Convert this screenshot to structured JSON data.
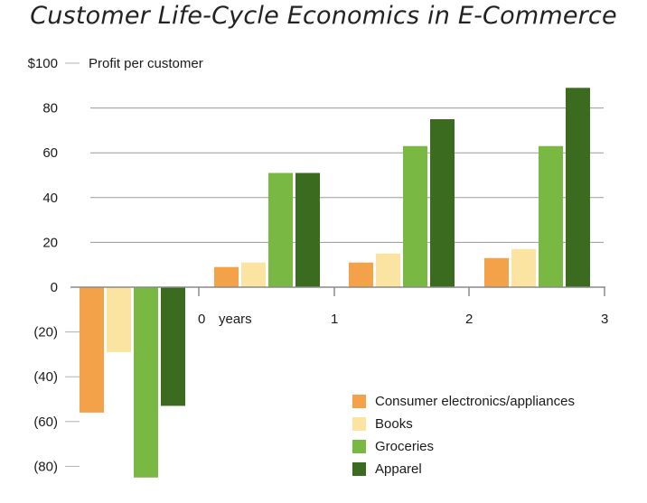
{
  "chart_data": {
    "type": "bar",
    "title": "Customer Life-Cycle Economics in E-Commerce",
    "ylabel": "Profit per customer",
    "xlabel": "years",
    "ylim": [
      -80,
      100
    ],
    "yticks": [
      100,
      80,
      60,
      40,
      20,
      0,
      -20,
      -40,
      -60,
      -80
    ],
    "ytick_labels": [
      "$100",
      "80",
      "60",
      "40",
      "20",
      "0",
      "(20)",
      "(40)",
      "(60)",
      "(80)"
    ],
    "categories": [
      "0",
      "1",
      "2",
      "3"
    ],
    "series": [
      {
        "name": "Consumer electronics/appliances",
        "color": "#f4a24a",
        "values": [
          -56,
          9,
          11,
          13
        ]
      },
      {
        "name": "Books",
        "color": "#fbe3a1",
        "values": [
          -29,
          11,
          15,
          17
        ]
      },
      {
        "name": "Groceries",
        "color": "#7ab844",
        "values": [
          -85,
          51,
          63,
          63
        ]
      },
      {
        "name": "Apparel",
        "color": "#3a6b1e",
        "values": [
          -53,
          51,
          75,
          89
        ]
      }
    ],
    "legend_position": "bottom-right",
    "grid": true
  }
}
